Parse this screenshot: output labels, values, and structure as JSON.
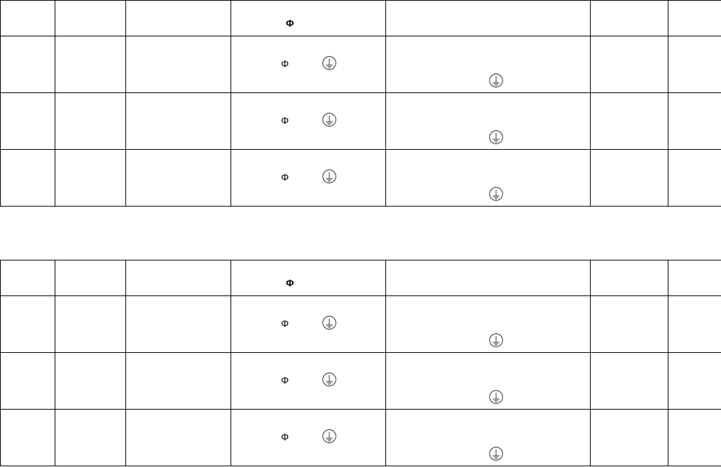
{
  "symbols": {
    "phase": "Φ",
    "ground_icon": "protective-earth-icon"
  },
  "tables": [
    {
      "rows": 3
    },
    {
      "rows": 3
    }
  ]
}
